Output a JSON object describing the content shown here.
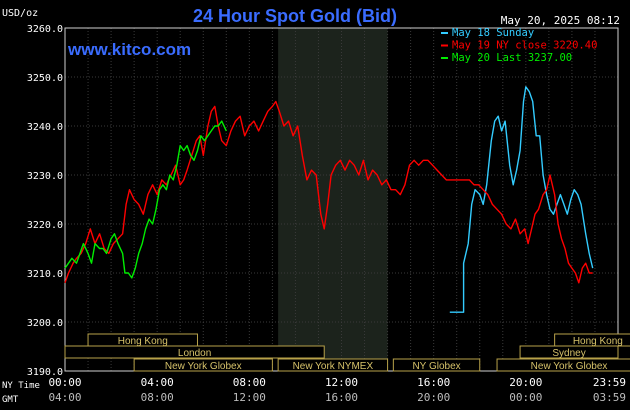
{
  "chart_data": {
    "type": "line",
    "title": "24 Hour Spot Gold (Bid)",
    "website": "www.kitco.com",
    "timestamp": "May 20, 2025 08:12",
    "ylabel": "USD/oz",
    "ylim": [
      3190,
      3260
    ],
    "yticks": [
      "3260.0",
      "3250.0",
      "3240.0",
      "3230.0",
      "3220.0",
      "3210.0",
      "3200.0",
      "3190.0"
    ],
    "x_label_ny": "NY Time",
    "x_label_gmt": "GMT",
    "x_ticks_ny": [
      "00:00",
      "04:00",
      "08:00",
      "12:00",
      "16:00",
      "20:00",
      "23:59"
    ],
    "x_ticks_gmt": [
      "04:00",
      "08:00",
      "12:00",
      "16:00",
      "20:00",
      "00:00",
      "03:59"
    ],
    "legend_placement": "top-right",
    "grid": true,
    "sessions": [
      {
        "label": "Hong Kong",
        "start": 2.0,
        "end": 11.5
      },
      {
        "label": "London",
        "start": 0.0,
        "end": 22.5
      },
      {
        "label": "New York Globex",
        "start": 6.0,
        "end": 18.0
      },
      {
        "label": "New York NYMEX",
        "start": 18.5,
        "end": 28.0
      },
      {
        "label": "NY Globex",
        "start": 28.5,
        "end": 36.0
      },
      {
        "label": "Hong Kong",
        "start": 42.5,
        "end": 50.0
      },
      {
        "label": "Sydney",
        "start": 39.5,
        "end": 48.0
      },
      {
        "label": "New York Globex",
        "start": 37.5,
        "end": 50.0
      }
    ],
    "series": [
      {
        "name": "May 18 Sunday",
        "color": "#33ccff",
        "points": [
          [
            33.4,
            3202.0
          ],
          [
            34.6,
            3202.0
          ],
          [
            34.6,
            3212.0
          ],
          [
            35.0,
            3216.0
          ],
          [
            35.3,
            3224.0
          ],
          [
            35.6,
            3227.0
          ],
          [
            36.0,
            3226.0
          ],
          [
            36.3,
            3224.0
          ],
          [
            36.6,
            3228.0
          ],
          [
            37.0,
            3237.0
          ],
          [
            37.3,
            3241.0
          ],
          [
            37.6,
            3242.0
          ],
          [
            37.9,
            3239.0
          ],
          [
            38.2,
            3241.0
          ],
          [
            38.6,
            3232.0
          ],
          [
            38.9,
            3228.0
          ],
          [
            39.2,
            3231.0
          ],
          [
            39.5,
            3235.0
          ],
          [
            39.8,
            3245.0
          ],
          [
            40.0,
            3248.0
          ],
          [
            40.3,
            3247.0
          ],
          [
            40.6,
            3245.0
          ],
          [
            40.9,
            3238.0
          ],
          [
            41.2,
            3238.0
          ],
          [
            41.5,
            3230.0
          ],
          [
            41.8,
            3226.0
          ],
          [
            42.1,
            3223.0
          ],
          [
            42.4,
            3222.0
          ],
          [
            42.7,
            3224.0
          ],
          [
            43.0,
            3226.0
          ],
          [
            43.3,
            3224.0
          ],
          [
            43.6,
            3222.0
          ],
          [
            43.9,
            3225.0
          ],
          [
            44.2,
            3227.0
          ],
          [
            44.5,
            3226.0
          ],
          [
            44.8,
            3224.0
          ],
          [
            45.2,
            3218.0
          ],
          [
            45.5,
            3214.0
          ],
          [
            45.8,
            3211.0
          ]
        ]
      },
      {
        "name": "May 19 NY close",
        "value": "3220.40",
        "color": "#ff0000",
        "points": [
          [
            0.0,
            3208.0
          ],
          [
            0.3,
            3210.0
          ],
          [
            0.7,
            3212.0
          ],
          [
            1.0,
            3213.0
          ],
          [
            1.4,
            3214.0
          ],
          [
            1.8,
            3216.0
          ],
          [
            2.2,
            3219.0
          ],
          [
            2.6,
            3216.0
          ],
          [
            3.0,
            3218.0
          ],
          [
            3.4,
            3215.0
          ],
          [
            3.8,
            3214.0
          ],
          [
            4.2,
            3216.0
          ],
          [
            4.6,
            3217.0
          ],
          [
            5.0,
            3218.0
          ],
          [
            5.3,
            3224.0
          ],
          [
            5.6,
            3227.0
          ],
          [
            6.0,
            3225.0
          ],
          [
            6.4,
            3224.0
          ],
          [
            6.8,
            3222.0
          ],
          [
            7.2,
            3226.0
          ],
          [
            7.6,
            3228.0
          ],
          [
            8.0,
            3226.0
          ],
          [
            8.4,
            3229.0
          ],
          [
            8.8,
            3228.0
          ],
          [
            9.2,
            3230.0
          ],
          [
            9.6,
            3232.0
          ],
          [
            10.0,
            3228.0
          ],
          [
            10.3,
            3229.0
          ],
          [
            10.6,
            3231.0
          ],
          [
            11.0,
            3234.0
          ],
          [
            11.4,
            3237.0
          ],
          [
            11.7,
            3238.0
          ],
          [
            12.0,
            3234.0
          ],
          [
            12.4,
            3240.0
          ],
          [
            12.7,
            3243.0
          ],
          [
            13.0,
            3244.0
          ],
          [
            13.3,
            3240.0
          ],
          [
            13.6,
            3237.0
          ],
          [
            14.0,
            3236.0
          ],
          [
            14.4,
            3239.0
          ],
          [
            14.8,
            3241.0
          ],
          [
            15.2,
            3242.0
          ],
          [
            15.6,
            3238.0
          ],
          [
            16.0,
            3240.0
          ],
          [
            16.4,
            3241.0
          ],
          [
            16.8,
            3239.0
          ],
          [
            17.2,
            3241.0
          ],
          [
            17.6,
            3243.0
          ],
          [
            18.0,
            3244.0
          ],
          [
            18.3,
            3245.0
          ],
          [
            18.6,
            3243.0
          ],
          [
            19.0,
            3240.0
          ],
          [
            19.4,
            3241.0
          ],
          [
            19.8,
            3238.0
          ],
          [
            20.2,
            3240.0
          ],
          [
            20.6,
            3234.0
          ],
          [
            21.0,
            3229.0
          ],
          [
            21.4,
            3231.0
          ],
          [
            21.8,
            3230.0
          ],
          [
            22.2,
            3222.0
          ],
          [
            22.5,
            3219.0
          ],
          [
            22.8,
            3224.0
          ],
          [
            23.1,
            3230.0
          ],
          [
            23.5,
            3232.0
          ],
          [
            23.9,
            3233.0
          ],
          [
            24.3,
            3231.0
          ],
          [
            24.7,
            3233.0
          ],
          [
            25.1,
            3232.0
          ],
          [
            25.5,
            3230.0
          ],
          [
            25.9,
            3233.0
          ],
          [
            26.3,
            3229.0
          ],
          [
            26.7,
            3231.0
          ],
          [
            27.1,
            3230.0
          ],
          [
            27.5,
            3228.0
          ],
          [
            27.9,
            3229.0
          ],
          [
            28.3,
            3227.0
          ],
          [
            28.7,
            3227.0
          ],
          [
            29.1,
            3226.0
          ],
          [
            29.5,
            3228.0
          ],
          [
            29.9,
            3232.0
          ],
          [
            30.3,
            3233.0
          ],
          [
            30.7,
            3232.0
          ],
          [
            31.1,
            3233.0
          ],
          [
            31.5,
            3233.0
          ],
          [
            31.9,
            3232.0
          ],
          [
            32.3,
            3231.0
          ],
          [
            32.7,
            3230.0
          ],
          [
            33.1,
            3229.0
          ],
          [
            33.5,
            3229.0
          ],
          [
            33.9,
            3229.0
          ],
          [
            34.3,
            3229.0
          ],
          [
            34.7,
            3229.0
          ],
          [
            35.1,
            3229.0
          ],
          [
            35.5,
            3228.0
          ],
          [
            35.9,
            3228.0
          ],
          [
            36.3,
            3227.0
          ],
          [
            36.7,
            3226.0
          ],
          [
            37.1,
            3224.0
          ],
          [
            37.5,
            3223.0
          ],
          [
            37.9,
            3222.0
          ],
          [
            38.3,
            3220.0
          ],
          [
            38.7,
            3219.0
          ],
          [
            39.1,
            3221.0
          ],
          [
            39.5,
            3218.0
          ],
          [
            39.9,
            3219.0
          ],
          [
            40.2,
            3216.0
          ],
          [
            40.5,
            3219.0
          ],
          [
            40.8,
            3222.0
          ],
          [
            41.1,
            3223.0
          ],
          [
            41.5,
            3226.0
          ],
          [
            41.8,
            3227.0
          ],
          [
            42.1,
            3230.0
          ],
          [
            42.5,
            3226.0
          ],
          [
            42.8,
            3220.0
          ],
          [
            43.1,
            3217.0
          ],
          [
            43.4,
            3215.0
          ],
          [
            43.7,
            3212.0
          ],
          [
            44.0,
            3211.0
          ],
          [
            44.3,
            3210.0
          ],
          [
            44.6,
            3208.0
          ],
          [
            44.9,
            3211.0
          ],
          [
            45.2,
            3212.0
          ],
          [
            45.5,
            3210.0
          ],
          [
            45.8,
            3210.0
          ]
        ]
      },
      {
        "name": "May 20 Last",
        "value": "3237.00",
        "color": "#00ee00",
        "points": [
          [
            0.0,
            3211.0
          ],
          [
            0.3,
            3212.0
          ],
          [
            0.6,
            3213.0
          ],
          [
            1.0,
            3212.0
          ],
          [
            1.3,
            3214.0
          ],
          [
            1.6,
            3216.0
          ],
          [
            2.0,
            3214.0
          ],
          [
            2.3,
            3212.0
          ],
          [
            2.6,
            3216.0
          ],
          [
            3.0,
            3215.0
          ],
          [
            3.3,
            3215.0
          ],
          [
            3.6,
            3214.0
          ],
          [
            4.0,
            3217.0
          ],
          [
            4.3,
            3218.0
          ],
          [
            4.6,
            3216.0
          ],
          [
            5.0,
            3214.0
          ],
          [
            5.2,
            3210.0
          ],
          [
            5.5,
            3210.0
          ],
          [
            5.8,
            3209.0
          ],
          [
            6.1,
            3211.0
          ],
          [
            6.4,
            3214.0
          ],
          [
            6.7,
            3216.0
          ],
          [
            7.0,
            3219.0
          ],
          [
            7.3,
            3221.0
          ],
          [
            7.6,
            3220.0
          ],
          [
            7.9,
            3223.0
          ],
          [
            8.2,
            3227.0
          ],
          [
            8.5,
            3228.0
          ],
          [
            8.8,
            3227.0
          ],
          [
            9.1,
            3230.0
          ],
          [
            9.4,
            3229.0
          ],
          [
            9.7,
            3232.0
          ],
          [
            10.0,
            3236.0
          ],
          [
            10.3,
            3235.0
          ],
          [
            10.6,
            3236.0
          ],
          [
            10.9,
            3234.0
          ],
          [
            11.2,
            3233.0
          ],
          [
            11.5,
            3235.0
          ],
          [
            11.8,
            3238.0
          ],
          [
            12.1,
            3237.0
          ],
          [
            12.4,
            3238.0
          ],
          [
            12.7,
            3239.0
          ],
          [
            13.0,
            3240.0
          ],
          [
            13.3,
            3240.0
          ],
          [
            13.6,
            3241.0
          ],
          [
            14.0,
            3239.0
          ]
        ]
      }
    ]
  }
}
